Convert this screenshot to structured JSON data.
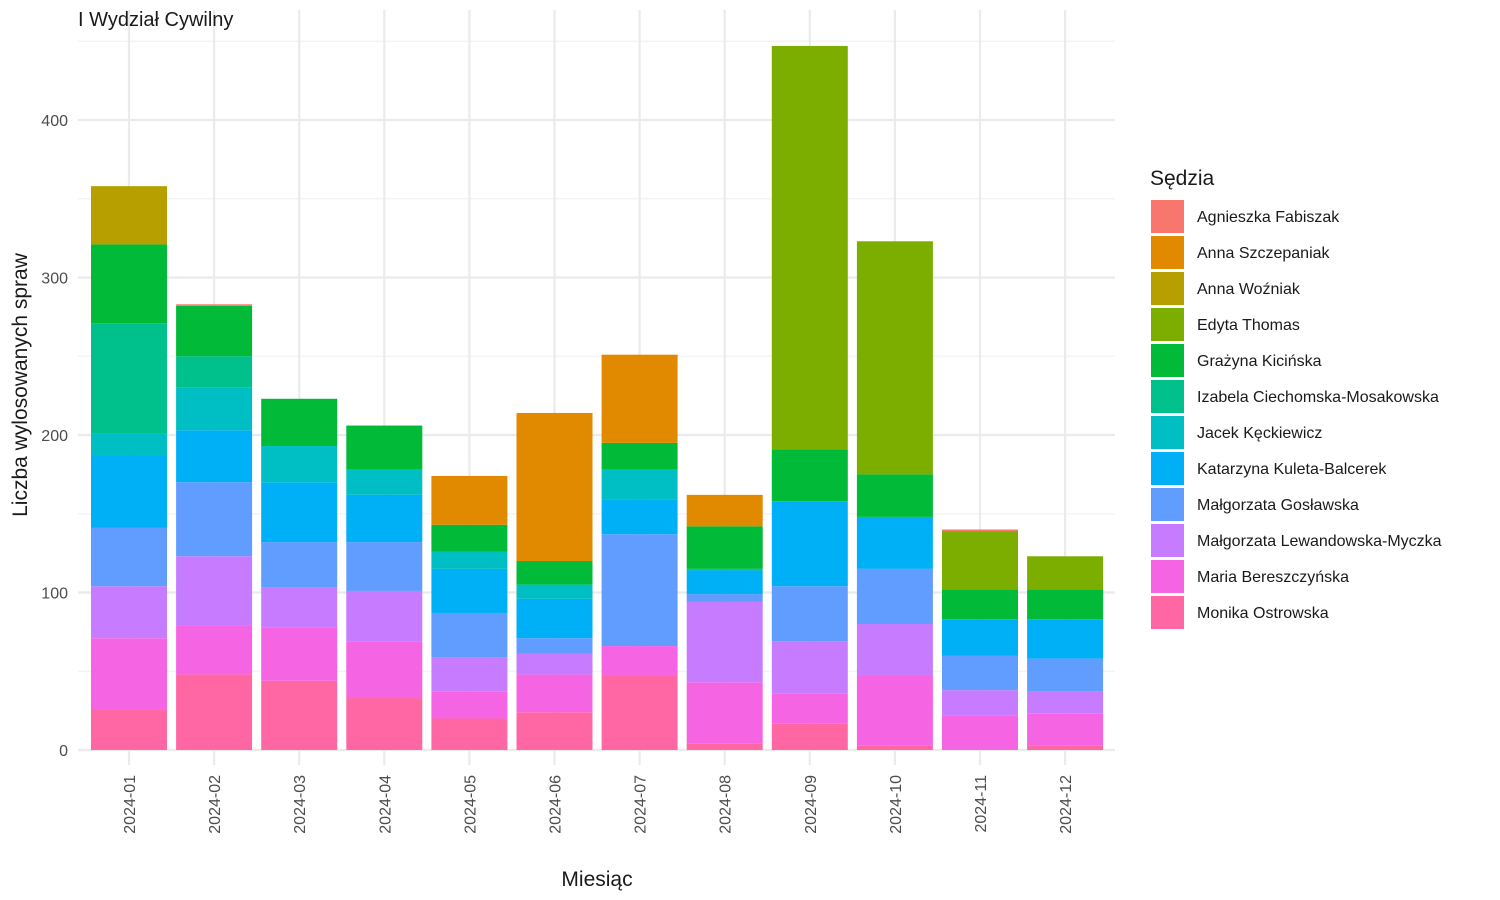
{
  "chart_data": {
    "type": "bar",
    "stacked": true,
    "title": "I Wydział Cywilny",
    "xlabel": "Miesiąc",
    "ylabel": "Liczba wylosowanych spraw",
    "ylim": [
      0,
      450
    ],
    "yticks": [
      0,
      100,
      200,
      300,
      400
    ],
    "grid": true,
    "legend_title": "Sędzia",
    "legend_position": "right",
    "categories": [
      "2024-01",
      "2024-02",
      "2024-03",
      "2024-04",
      "2024-05",
      "2024-06",
      "2024-07",
      "2024-08",
      "2024-09",
      "2024-10",
      "2024-11",
      "2024-12"
    ],
    "series": [
      {
        "name": "Monika Ostrowska",
        "color": "#FF67A4",
        "values": [
          26,
          48,
          44,
          33,
          20,
          24,
          47,
          4,
          17,
          3,
          0,
          3
        ]
      },
      {
        "name": "Maria Bereszczyńska",
        "color": "#F564E3",
        "values": [
          45,
          31,
          34,
          36,
          17,
          24,
          19,
          39,
          19,
          44,
          22,
          20
        ]
      },
      {
        "name": "Małgorzata Lewandowska-Myczka",
        "color": "#C77CFF",
        "values": [
          33,
          44,
          25,
          32,
          22,
          13,
          0,
          51,
          33,
          33,
          16,
          14
        ]
      },
      {
        "name": "Małgorzata Gosławska",
        "color": "#619CFF",
        "values": [
          37,
          47,
          29,
          31,
          28,
          10,
          71,
          5,
          35,
          35,
          22,
          21
        ]
      },
      {
        "name": "Katarzyna Kuleta-Balcerek",
        "color": "#00B0F6",
        "values": [
          46,
          33,
          38,
          30,
          28,
          25,
          22,
          15,
          54,
          33,
          23,
          25
        ]
      },
      {
        "name": "Jacek Kęckiewicz",
        "color": "#00BFC4",
        "values": [
          14,
          27,
          23,
          16,
          11,
          9,
          19,
          1,
          0,
          0,
          0,
          0
        ]
      },
      {
        "name": "Izabela Ciechomska-Mosakowska",
        "color": "#00C08B",
        "values": [
          70,
          20,
          0,
          0,
          0,
          0,
          0,
          0,
          0,
          0,
          0,
          0
        ]
      },
      {
        "name": "Grażyna Kicińska",
        "color": "#00BA38",
        "values": [
          50,
          32,
          30,
          28,
          17,
          15,
          17,
          27,
          33,
          27,
          19,
          19
        ]
      },
      {
        "name": "Edyta Thomas",
        "color": "#7CAE00",
        "values": [
          0,
          0,
          0,
          0,
          0,
          0,
          0,
          0,
          256,
          148,
          37,
          21
        ]
      },
      {
        "name": "Anna Woźniak",
        "color": "#B79F00",
        "values": [
          37,
          0,
          0,
          0,
          0,
          0,
          0,
          0,
          0,
          0,
          0,
          0
        ]
      },
      {
        "name": "Anna Szczepaniak",
        "color": "#E18A00",
        "values": [
          0,
          0,
          0,
          0,
          31,
          94,
          56,
          20,
          0,
          0,
          0,
          0
        ]
      },
      {
        "name": "Agnieszka Fabiszak",
        "color": "#F8766D",
        "values": [
          0,
          1,
          0,
          0,
          0,
          0,
          0,
          0,
          0,
          0,
          1,
          0
        ]
      }
    ],
    "legend_order": [
      "Agnieszka Fabiszak",
      "Anna Szczepaniak",
      "Anna Woźniak",
      "Edyta Thomas",
      "Grażyna Kicińska",
      "Izabela Ciechomska-Mosakowska",
      "Jacek Kęckiewicz",
      "Katarzyna Kuleta-Balcerek",
      "Małgorzata Gosławska",
      "Małgorzata Lewandowska-Myczka",
      "Maria Bereszczyńska",
      "Monika Ostrowska"
    ]
  }
}
